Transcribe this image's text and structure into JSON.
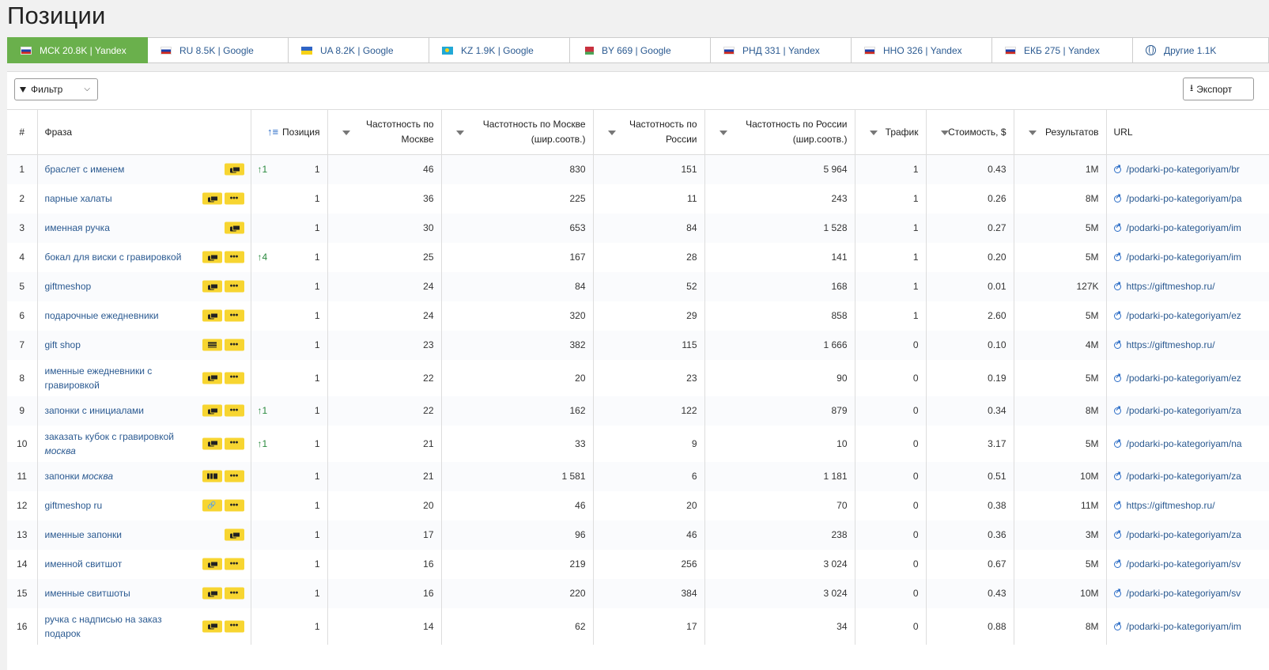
{
  "page": {
    "title": "Позиции"
  },
  "tabs": [
    {
      "label": "МСК 20.8K | Yandex",
      "flag": "ru",
      "active": true
    },
    {
      "label": "RU 8.5K | Google",
      "flag": "ru"
    },
    {
      "label": "UA 8.2K | Google",
      "flag": "ua"
    },
    {
      "label": "KZ 1.9K | Google",
      "flag": "kz"
    },
    {
      "label": "BY 669 | Google",
      "flag": "by"
    },
    {
      "label": "РНД 331 | Yandex",
      "flag": "ru"
    },
    {
      "label": "ННО 326 | Yandex",
      "flag": "ru"
    },
    {
      "label": "ЕКБ 275 | Yandex",
      "flag": "ru"
    },
    {
      "label": "Другие 1.1K",
      "flag": "globe"
    }
  ],
  "toolbar": {
    "filter_label": "Фильтр",
    "export_label": "Экспорт"
  },
  "table": {
    "headers": {
      "num": "#",
      "phrase": "Фраза",
      "position": "Позиция",
      "freq_msk": "Частотность по Москве",
      "freq_msk_broad": "Частотность по Москве (шир.соотв.)",
      "freq_ru": "Частотность по России",
      "freq_ru_broad": "Частотность по России (шир.соотв.)",
      "traffic": "Трафик",
      "cost": "Стоимость, $",
      "results": "Результатов",
      "url": "URL"
    },
    "rows": [
      {
        "n": "1",
        "phrase": "браслет с именем",
        "features": [
          "bubble"
        ],
        "change": "↑1",
        "position": "1",
        "freq_msk": "46",
        "freq_msk_broad": "830",
        "freq_ru": "151",
        "freq_ru_broad": "5 964",
        "traffic": "1",
        "cost": "0.43",
        "results": "1M",
        "url": "/podarki-po-kategoriyam/br"
      },
      {
        "n": "2",
        "phrase": "парные халаты",
        "features": [
          "bubble",
          "more"
        ],
        "change": "",
        "position": "1",
        "freq_msk": "36",
        "freq_msk_broad": "225",
        "freq_ru": "11",
        "freq_ru_broad": "243",
        "traffic": "1",
        "cost": "0.26",
        "results": "8M",
        "url": "/podarki-po-kategoriyam/pa"
      },
      {
        "n": "3",
        "phrase": "именная ручка",
        "features": [
          "bubble"
        ],
        "change": "",
        "position": "1",
        "freq_msk": "30",
        "freq_msk_broad": "653",
        "freq_ru": "84",
        "freq_ru_broad": "1 528",
        "traffic": "1",
        "cost": "0.27",
        "results": "5M",
        "url": "/podarki-po-kategoriyam/im"
      },
      {
        "n": "4",
        "phrase": "бокал для виски с гравировкой",
        "features": [
          "bubble",
          "more"
        ],
        "change": "↑4",
        "position": "1",
        "freq_msk": "25",
        "freq_msk_broad": "167",
        "freq_ru": "28",
        "freq_ru_broad": "141",
        "traffic": "1",
        "cost": "0.20",
        "results": "5M",
        "url": "/podarki-po-kategoriyam/im"
      },
      {
        "n": "5",
        "phrase": "giftmeshop",
        "features": [
          "bubble",
          "more"
        ],
        "change": "",
        "position": "1",
        "freq_msk": "24",
        "freq_msk_broad": "84",
        "freq_ru": "52",
        "freq_ru_broad": "168",
        "traffic": "1",
        "cost": "0.01",
        "results": "127K",
        "url": "https://giftmeshop.ru/"
      },
      {
        "n": "6",
        "phrase": "подарочные ежедневники",
        "features": [
          "bubble",
          "more"
        ],
        "change": "",
        "position": "1",
        "freq_msk": "24",
        "freq_msk_broad": "320",
        "freq_ru": "29",
        "freq_ru_broad": "858",
        "traffic": "1",
        "cost": "2.60",
        "results": "5M",
        "url": "/podarki-po-kategoriyam/ez"
      },
      {
        "n": "7",
        "phrase": "gift shop",
        "features": [
          "lines",
          "more"
        ],
        "change": "",
        "position": "1",
        "freq_msk": "23",
        "freq_msk_broad": "382",
        "freq_ru": "115",
        "freq_ru_broad": "1 666",
        "traffic": "0",
        "cost": "0.10",
        "results": "4M",
        "url": "https://giftmeshop.ru/"
      },
      {
        "n": "8",
        "phrase": "именные ежедневники с гравировкой",
        "features": [
          "bubble",
          "more"
        ],
        "change": "",
        "position": "1",
        "freq_msk": "22",
        "freq_msk_broad": "20",
        "freq_ru": "23",
        "freq_ru_broad": "90",
        "traffic": "0",
        "cost": "0.19",
        "results": "5M",
        "url": "/podarki-po-kategoriyam/ez",
        "tall": true
      },
      {
        "n": "9",
        "phrase": "запонки с инициалами",
        "features": [
          "bubble",
          "more"
        ],
        "change": "↑1",
        "position": "1",
        "freq_msk": "22",
        "freq_msk_broad": "162",
        "freq_ru": "122",
        "freq_ru_broad": "879",
        "traffic": "0",
        "cost": "0.34",
        "results": "8M",
        "url": "/podarki-po-kategoriyam/za"
      },
      {
        "n": "10",
        "phrase": "заказать кубок с гравировкой",
        "phrase_italic": "москва",
        "features": [
          "bubble",
          "more"
        ],
        "change": "↑1",
        "position": "1",
        "freq_msk": "21",
        "freq_msk_broad": "33",
        "freq_ru": "9",
        "freq_ru_broad": "10",
        "traffic": "0",
        "cost": "3.17",
        "results": "5M",
        "url": "/podarki-po-kategoriyam/na",
        "tall": true
      },
      {
        "n": "11",
        "phrase": "запонки",
        "phrase_italic": "москва",
        "features": [
          "bars",
          "more"
        ],
        "change": "",
        "position": "1",
        "freq_msk": "21",
        "freq_msk_broad": "1 581",
        "freq_ru": "6",
        "freq_ru_broad": "1 181",
        "traffic": "0",
        "cost": "0.51",
        "results": "10M",
        "url": "/podarki-po-kategoriyam/za"
      },
      {
        "n": "12",
        "phrase": "giftmeshop ru",
        "features": [
          "link",
          "more"
        ],
        "change": "",
        "position": "1",
        "freq_msk": "20",
        "freq_msk_broad": "46",
        "freq_ru": "20",
        "freq_ru_broad": "70",
        "traffic": "0",
        "cost": "0.38",
        "results": "11M",
        "url": "https://giftmeshop.ru/"
      },
      {
        "n": "13",
        "phrase": "именные запонки",
        "features": [
          "bubble"
        ],
        "change": "",
        "position": "1",
        "freq_msk": "17",
        "freq_msk_broad": "96",
        "freq_ru": "46",
        "freq_ru_broad": "238",
        "traffic": "0",
        "cost": "0.36",
        "results": "3M",
        "url": "/podarki-po-kategoriyam/za"
      },
      {
        "n": "14",
        "phrase": "именной свитшот",
        "features": [
          "bubble",
          "more"
        ],
        "change": "",
        "position": "1",
        "freq_msk": "16",
        "freq_msk_broad": "219",
        "freq_ru": "256",
        "freq_ru_broad": "3 024",
        "traffic": "0",
        "cost": "0.67",
        "results": "5M",
        "url": "/podarki-po-kategoriyam/sv"
      },
      {
        "n": "15",
        "phrase": "именные свитшоты",
        "features": [
          "bubble",
          "more"
        ],
        "change": "",
        "position": "1",
        "freq_msk": "16",
        "freq_msk_broad": "220",
        "freq_ru": "384",
        "freq_ru_broad": "3 024",
        "traffic": "0",
        "cost": "0.43",
        "results": "10M",
        "url": "/podarki-po-kategoriyam/sv"
      },
      {
        "n": "16",
        "phrase": "ручка с надписью на заказ подарок",
        "features": [
          "bubble",
          "more"
        ],
        "change": "",
        "position": "1",
        "freq_msk": "14",
        "freq_msk_broad": "62",
        "freq_ru": "17",
        "freq_ru_broad": "34",
        "traffic": "0",
        "cost": "0.88",
        "results": "8M",
        "url": "/podarki-po-kategoriyam/im",
        "tall": true
      }
    ]
  }
}
